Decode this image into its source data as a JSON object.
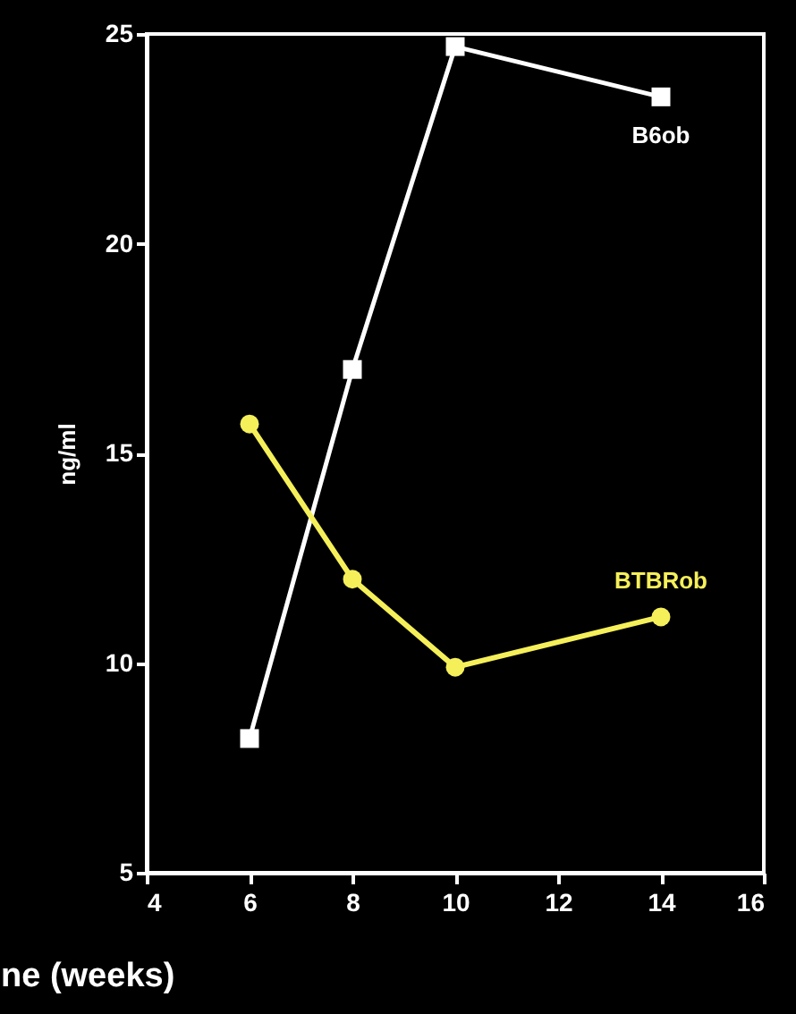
{
  "chart_data": {
    "type": "line",
    "xlabel": "ne (weeks)",
    "ylabel": "ng/ml",
    "x": [
      6,
      8,
      10,
      14
    ],
    "series": [
      {
        "name": "B6ob",
        "color": "#ffffff",
        "marker": "square",
        "values": [
          8.2,
          17.0,
          24.7,
          23.5
        ]
      },
      {
        "name": "BTBRob",
        "color": "#f5ef5a",
        "marker": "circle",
        "values": [
          15.7,
          12.0,
          9.9,
          11.1
        ]
      }
    ],
    "xlim": [
      4,
      16
    ],
    "xticks": [
      4,
      6,
      8,
      10,
      12,
      14,
      16
    ],
    "ylim": [
      5,
      25
    ],
    "yticks": [
      5,
      10,
      15,
      20,
      25
    ],
    "grid": false
  }
}
